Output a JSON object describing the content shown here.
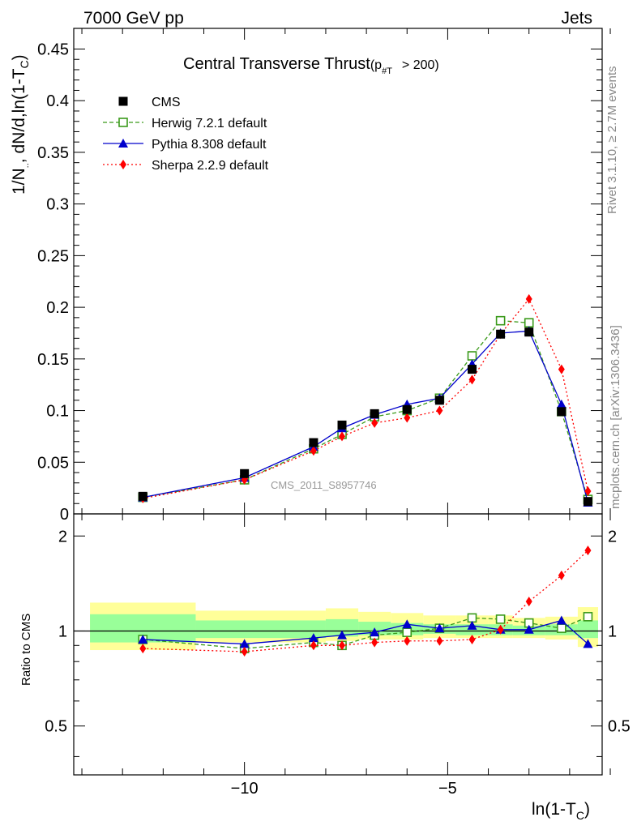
{
  "header": {
    "left": "7000 GeV pp",
    "right": "Jets"
  },
  "side_labels": {
    "rivet": "Rivet 3.1.10, ≥ 2.7M events",
    "mcplots": "mcplots.cern.ch [arXiv:1306.3436]"
  },
  "watermark": "CMS_2011_S8957746",
  "colors": {
    "cms": "#000000",
    "herwig": "#3a9a1a",
    "pythia": "#0000cc",
    "sherpa": "#ff0000",
    "band_yellow": "#ffff99",
    "band_green": "#99ff99"
  },
  "chart_data": [
    {
      "type": "line",
      "title": "Central Transverse Thrust",
      "title_suffix": "(p",
      "title_sub": "#T",
      "title_tail": "> 200)",
      "ylabel": "1/N",
      "ylabel_sub": "..",
      "ylabel_mid": ", dN/d,ln(1-T",
      "ylabel_sub2": "C",
      "ylabel_tail": ")",
      "xlim": [
        -14.2,
        -1.2
      ],
      "ylim": [
        0,
        0.47
      ],
      "yticks": [
        0,
        0.05,
        0.1,
        0.15,
        0.2,
        0.25,
        0.3,
        0.35,
        0.4,
        0.45
      ],
      "ytick_labels": [
        "0",
        "0.05",
        "0.1",
        "0.15",
        "0.2",
        "0.25",
        "0.3",
        "0.35",
        "0.4",
        "0.45"
      ],
      "x": [
        -12.5,
        -10,
        -8.3,
        -7.6,
        -6.8,
        -6.0,
        -5.2,
        -4.4,
        -3.7,
        -3.0,
        -2.2,
        -1.55
      ],
      "series": [
        {
          "name": "CMS",
          "key": "cms",
          "values": [
            0.017,
            0.039,
            0.069,
            0.086,
            0.097,
            0.101,
            0.11,
            0.14,
            0.174,
            0.176,
            0.099,
            0.012
          ]
        },
        {
          "name": "Herwig 7.2.1 default",
          "key": "herwig",
          "values": [
            0.016,
            0.033,
            0.063,
            0.077,
            0.094,
            0.1,
            0.112,
            0.153,
            0.187,
            0.185,
            0.099,
            0.014
          ]
        },
        {
          "name": "Pythia 8.308 default",
          "key": "pythia",
          "values": [
            0.016,
            0.035,
            0.065,
            0.083,
            0.096,
            0.106,
            0.112,
            0.145,
            0.175,
            0.177,
            0.106,
            0.011
          ]
        },
        {
          "name": "Sherpa 2.2.9 default",
          "key": "sherpa",
          "values": [
            0.015,
            0.033,
            0.061,
            0.075,
            0.088,
            0.093,
            0.1,
            0.13,
            0.174,
            0.208,
            0.14,
            0.022
          ]
        }
      ],
      "legend": [
        {
          "label": "CMS",
          "key": "cms"
        },
        {
          "label": "Herwig 7.2.1 default",
          "key": "herwig"
        },
        {
          "label": "Pythia 8.308 default",
          "key": "pythia"
        },
        {
          "label": "Sherpa 2.2.9 default",
          "key": "sherpa"
        }
      ]
    },
    {
      "type": "line",
      "ylabel": "Ratio to CMS",
      "xlabel": "ln(1-T",
      "xlabel_sub": "C",
      "xlabel_tail": ")",
      "xlim": [
        -14.2,
        -1.2
      ],
      "ylim": [
        0.35,
        2.35
      ],
      "yticks": [
        0.5,
        1,
        2
      ],
      "ytick_labels": [
        "0.5",
        "1",
        "2"
      ],
      "xticks": [
        -10,
        -5
      ],
      "xtick_labels": [
        "−10",
        "−5"
      ],
      "x": [
        -12.5,
        -10,
        -8.3,
        -7.6,
        -6.8,
        -6.0,
        -5.2,
        -4.4,
        -3.7,
        -3.0,
        -2.2,
        -1.55
      ],
      "bands": [
        {
          "x0": -13.8,
          "x1": -11.2,
          "yellow": [
            0.87,
            1.23
          ],
          "green": [
            0.92,
            1.13
          ]
        },
        {
          "x0": -11.2,
          "x1": -8.0,
          "yellow": [
            0.92,
            1.16
          ],
          "green": [
            0.95,
            1.08
          ]
        },
        {
          "x0": -8.0,
          "x1": -7.2,
          "yellow": [
            0.93,
            1.18
          ],
          "green": [
            0.96,
            1.09
          ]
        },
        {
          "x0": -7.2,
          "x1": -6.4,
          "yellow": [
            0.94,
            1.15
          ],
          "green": [
            0.97,
            1.07
          ]
        },
        {
          "x0": -6.4,
          "x1": -5.6,
          "yellow": [
            0.94,
            1.14
          ],
          "green": [
            0.97,
            1.06
          ]
        },
        {
          "x0": -5.6,
          "x1": -4.8,
          "yellow": [
            0.95,
            1.12
          ],
          "green": [
            0.98,
            1.05
          ]
        },
        {
          "x0": -4.8,
          "x1": -4.0,
          "yellow": [
            0.95,
            1.12
          ],
          "green": [
            0.97,
            1.05
          ]
        },
        {
          "x0": -4.0,
          "x1": -3.4,
          "yellow": [
            0.95,
            1.12
          ],
          "green": [
            0.97,
            1.05
          ]
        },
        {
          "x0": -3.4,
          "x1": -2.6,
          "yellow": [
            0.95,
            1.1
          ],
          "green": [
            0.97,
            1.04
          ]
        },
        {
          "x0": -2.6,
          "x1": -1.8,
          "yellow": [
            0.94,
            1.11
          ],
          "green": [
            0.97,
            1.05
          ]
        },
        {
          "x0": -1.8,
          "x1": -1.3,
          "yellow": [
            0.89,
            1.19
          ],
          "green": [
            0.95,
            1.08
          ]
        }
      ],
      "series": [
        {
          "name": "Herwig 7.2.1 default",
          "key": "herwig",
          "values": [
            0.94,
            0.88,
            0.92,
            0.9,
            0.97,
            0.99,
            1.02,
            1.1,
            1.09,
            1.06,
            1.02,
            1.11
          ]
        },
        {
          "name": "Pythia 8.308 default",
          "key": "pythia",
          "values": [
            0.94,
            0.91,
            0.95,
            0.97,
            0.99,
            1.05,
            1.02,
            1.04,
            1.01,
            1.01,
            1.08,
            0.91
          ]
        },
        {
          "name": "Sherpa 2.2.9 default",
          "key": "sherpa",
          "values": [
            0.88,
            0.86,
            0.9,
            0.9,
            0.92,
            0.93,
            0.93,
            0.94,
            1.01,
            1.24,
            1.5,
            1.8
          ]
        }
      ]
    }
  ]
}
